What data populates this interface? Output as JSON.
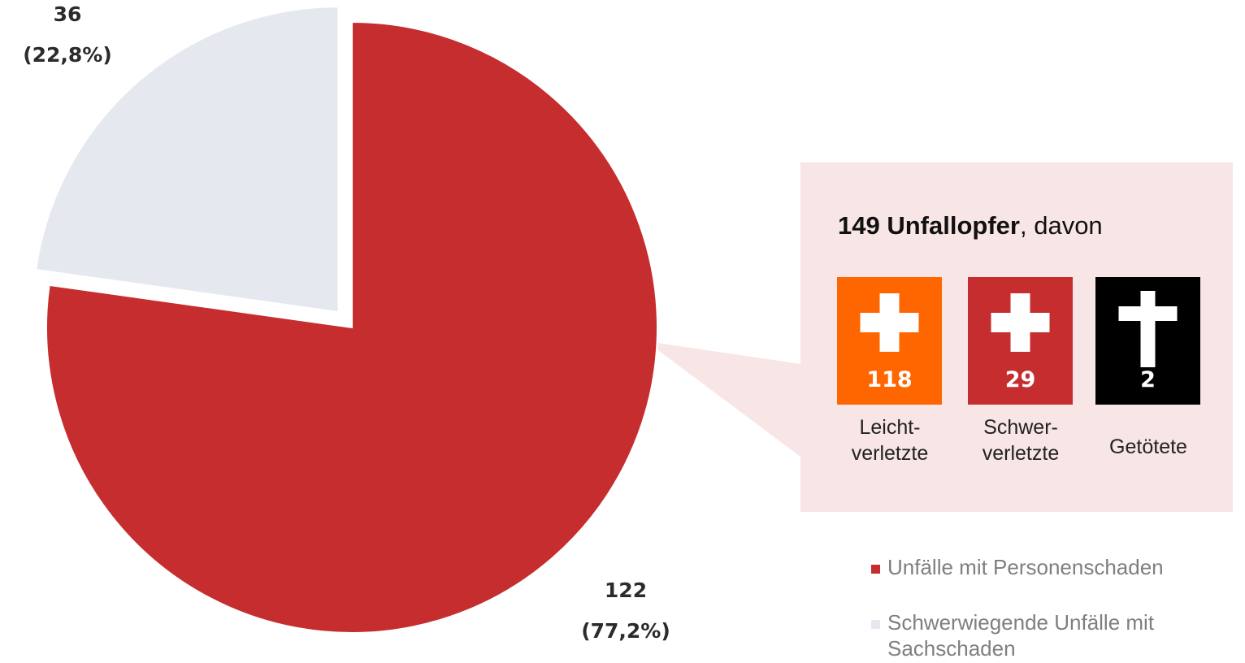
{
  "chart_data": {
    "type": "pie",
    "labels": [
      "Unfälle mit Personenschaden",
      "Schwerwiegende Unfälle mit Sachschaden"
    ],
    "values": [
      122,
      36
    ],
    "percent_labels": [
      "(77,2%)",
      "(22,8%)"
    ],
    "colors": [
      "#c62d2f",
      "#e5e8ee"
    ],
    "legend": "bottom-right",
    "callout": {
      "total": 149,
      "title": "Unfallopfer",
      "suffix": ", davon",
      "items": [
        {
          "value": 118,
          "label": "Leicht-\nverletzte",
          "color": "#ff6600"
        },
        {
          "value": 29,
          "label": "Schwer-\nverletzte",
          "color": "#c62d2f"
        },
        {
          "value": 2,
          "label": "Getötete",
          "color": "#000000"
        }
      ]
    }
  }
}
